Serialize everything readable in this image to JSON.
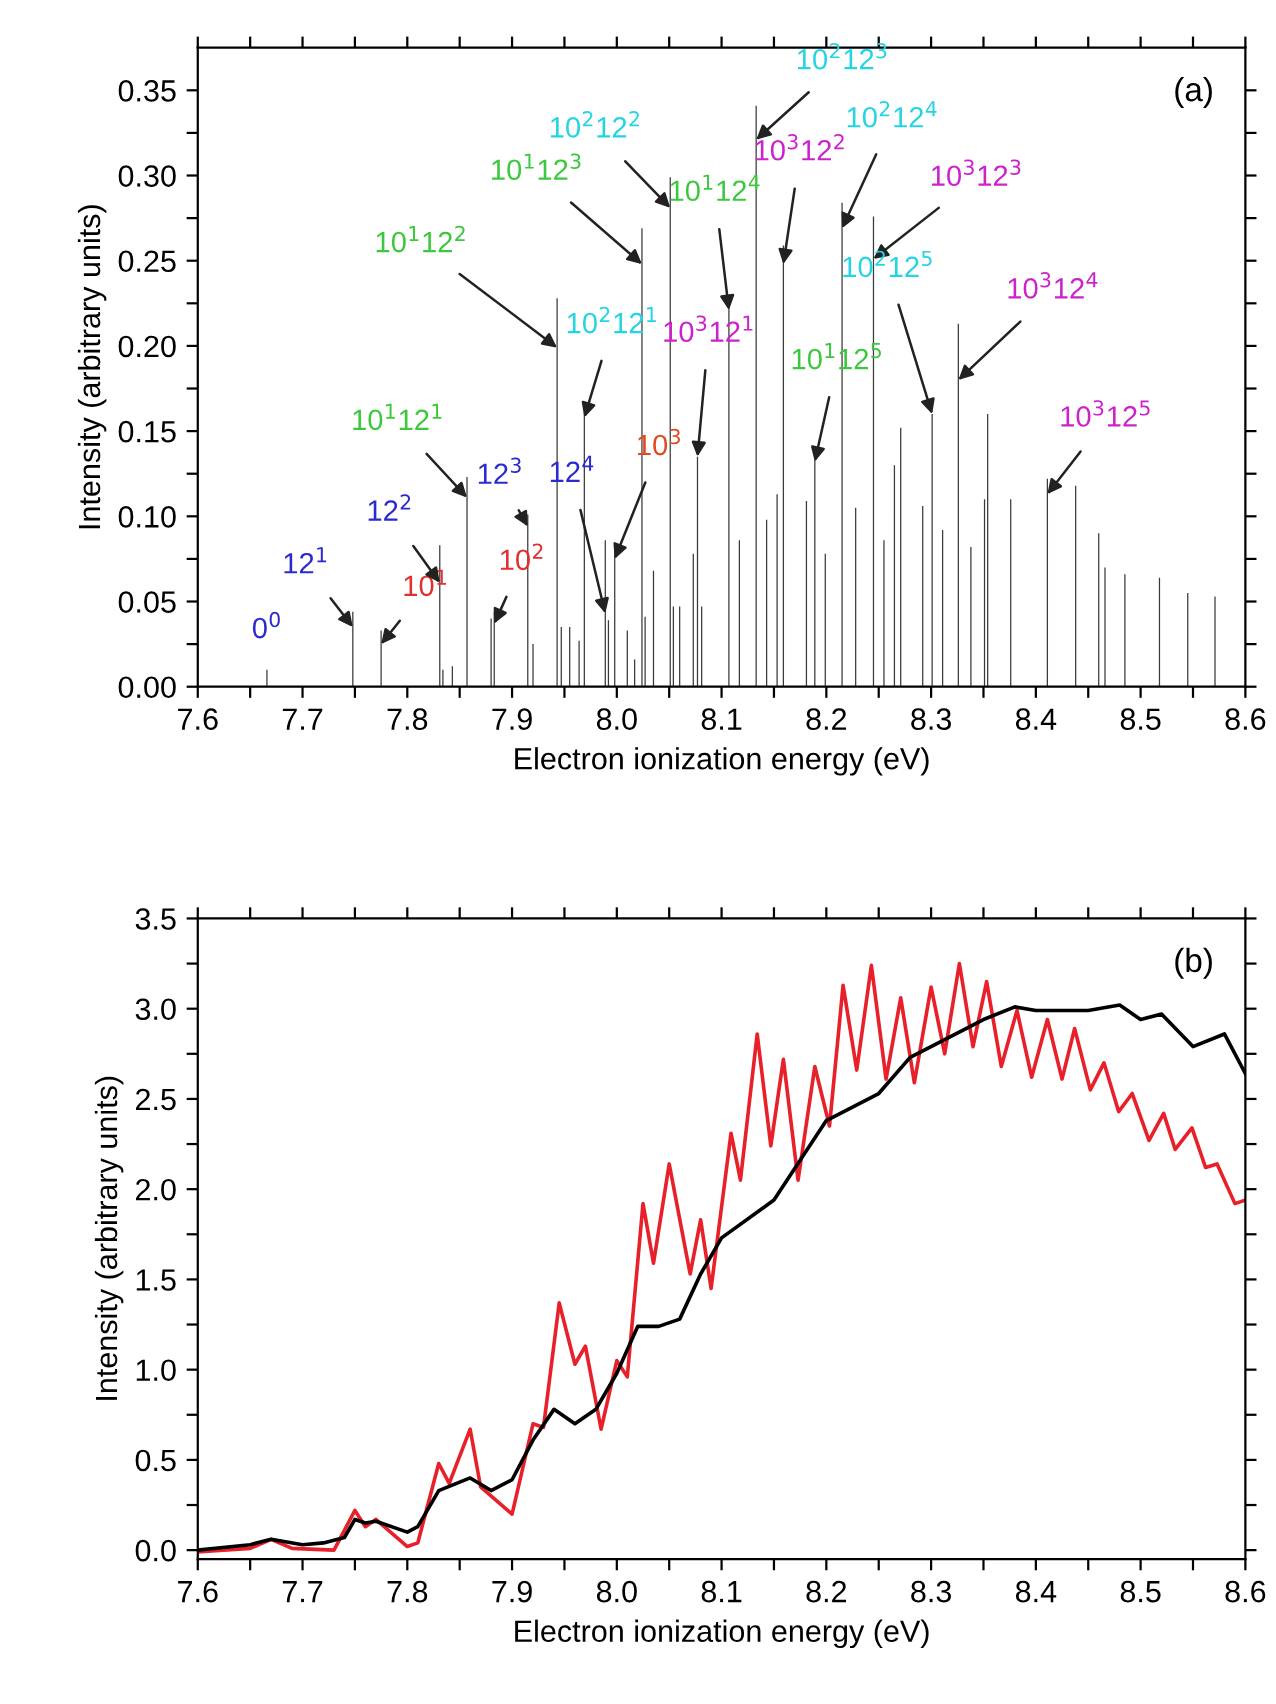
{
  "chart_data": [
    {
      "type": "bar",
      "xlabel": "Electron ionization energy (eV)",
      "ylabel": "Intensity (arbitrary units)",
      "xlim": [
        7.6,
        8.6
      ],
      "ylim": [
        0,
        0.375
      ],
      "xticks": [
        7.6,
        {
          "value": 7.65,
          "label": null
        },
        7.7,
        {
          "value": 7.75,
          "label": null
        },
        7.8,
        {
          "value": 7.85,
          "label": null
        },
        7.9,
        {
          "value": 7.95,
          "label": null
        },
        {
          "value": 8,
          "label": "8.0"
        },
        {
          "value": 8.05,
          "label": null
        },
        8.1,
        {
          "value": 8.15,
          "label": null
        },
        8.2,
        {
          "value": 8.25,
          "label": null
        },
        8.3,
        {
          "value": 8.35,
          "label": null
        },
        8.4,
        {
          "value": 8.45,
          "label": null
        },
        8.5,
        {
          "value": 8.55,
          "label": null
        },
        8.6
      ],
      "yticks": [
        {
          "value": 0,
          "label": "0.00"
        },
        {
          "value": 0.025,
          "label": null
        },
        0.05,
        {
          "value": 0.075,
          "label": null
        },
        {
          "value": 0.1,
          "label": "0.10"
        },
        {
          "value": 0.125,
          "label": null
        },
        0.15,
        {
          "value": 0.175,
          "label": null
        },
        {
          "value": 0.2,
          "label": "0.20"
        },
        {
          "value": 0.225,
          "label": null
        },
        0.25,
        {
          "value": 0.275,
          "label": null
        },
        {
          "value": 0.3,
          "label": "0.30"
        },
        {
          "value": 0.325,
          "label": null
        },
        0.35
      ],
      "grid": false,
      "series": [
        {
          "color": "#3a3a3a",
          "x": [
            7.666,
            7.748,
            7.775,
            7.831,
            7.834,
            7.843,
            7.857,
            7.88,
            7.883,
            7.915,
            7.92,
            7.943,
            7.947,
            7.955,
            7.964,
            7.969,
            7.989,
            7.992,
            7.998,
            8.01,
            8.017,
            8.024,
            8.027,
            8.035,
            8.051,
            8.054,
            8.06,
            8.073,
            8.077,
            8.081,
            8.107,
            8.117,
            8.133,
            8.143,
            8.153,
            8.159,
            8.181,
            8.189,
            8.199,
            8.215,
            8.228,
            8.245,
            8.255,
            8.265,
            8.271,
            8.292,
            8.301,
            8.311,
            8.326,
            8.338,
            8.351,
            8.354,
            8.376,
            8.411,
            8.438,
            8.46,
            8.466,
            8.485,
            8.518,
            8.545,
            8.571
          ],
          "values": [
            0.01,
            0.044,
            0.033,
            0.083,
            0.01,
            0.012,
            0.123,
            0.04,
            0.044,
            0.101,
            0.025,
            0.228,
            0.035,
            0.035,
            0.027,
            0.161,
            0.086,
            0.039,
            0.082,
            0.033,
            0.016,
            0.269,
            0.041,
            0.068,
            0.299,
            0.047,
            0.047,
            0.078,
            0.135,
            0.047,
            0.223,
            0.086,
            0.341,
            0.098,
            0.113,
            0.259,
            0.109,
            0.133,
            0.078,
            0.284,
            0.105,
            0.276,
            0.086,
            0.13,
            0.152,
            0.106,
            0.16,
            0.092,
            0.213,
            0.082,
            0.11,
            0.16,
            0.11,
            0.122,
            0.118,
            0.09,
            0.07,
            0.066,
            0.064,
            0.055,
            0.053
          ]
        }
      ],
      "annotations": [
        {
          "text": "0$^{0}$",
          "x": 7.666,
          "y": 0.01
        },
        {
          "text": "12$^{1}$",
          "x": 7.748,
          "y": 0.035
        },
        {
          "text": "10$^{1}$",
          "x": 7.775,
          "y": 0.025
        },
        {
          "text": "12$^{2}$",
          "x": 7.831,
          "y": 0.061
        },
        {
          "text": "10$^{1}$12$^{1}$",
          "x": 7.857,
          "y": 0.111
        },
        {
          "text": "10$^{2}$",
          "x": 7.883,
          "y": 0.037
        },
        {
          "text": "12$^{3}$",
          "x": 7.915,
          "y": 0.094
        },
        {
          "text": "10$^{1}$12$^{2}$",
          "x": 7.943,
          "y": 0.199
        },
        {
          "text": "10$^{2}$12$^{1}$",
          "x": 7.969,
          "y": 0.158
        },
        {
          "text": "10$^{3}$",
          "x": 7.998,
          "y": 0.075
        },
        {
          "text": "12$^{4}$",
          "x": 7.989,
          "y": 0.043
        },
        {
          "text": "10$^{1}$12$^{3}$",
          "x": 8.024,
          "y": 0.248
        },
        {
          "text": "10$^{2}$12$^{2}$",
          "x": 8.051,
          "y": 0.281
        },
        {
          "text": "10$^{3}$12$^{1}$",
          "x": 8.077,
          "y": 0.135
        },
        {
          "text": "10$^{1}$12$^{4}$",
          "x": 8.107,
          "y": 0.221
        },
        {
          "text": "10$^{2}$12$^{3}$",
          "x": 8.133,
          "y": 0.321
        },
        {
          "text": "10$^{3}$12$^{2}$",
          "x": 8.159,
          "y": 0.248
        },
        {
          "text": "10$^{1}$12$^{5}$",
          "x": 8.189,
          "y": 0.132
        },
        {
          "text": "10$^{2}$12$^{4}$",
          "x": 8.215,
          "y": 0.269
        },
        {
          "text": "10$^{3}$12$^{3}$",
          "x": 8.245,
          "y": 0.251
        },
        {
          "text": "10$^{2}$12$^{5}$",
          "x": 8.301,
          "y": 0.16
        },
        {
          "text": "10$^{3}$12$^{4}$",
          "x": 8.326,
          "y": 0.18
        },
        {
          "text": "10$^{3}$12$^{5}$",
          "x": 8.411,
          "y": 0.113
        },
        "(a)"
      ]
    },
    {
      "type": "line",
      "xlabel": "Electron ionization energy (eV)",
      "ylabel": "Intensity (arbitrary units)",
      "xlim": [
        7.6,
        8.6
      ],
      "ylim": [
        -0.05,
        3.5
      ],
      "xticks": [
        7.6,
        {
          "value": 7.65,
          "label": null
        },
        7.7,
        {
          "value": 7.75,
          "label": null
        },
        7.8,
        {
          "value": 7.85,
          "label": null
        },
        7.9,
        {
          "value": 7.95,
          "label": null
        },
        {
          "value": 8,
          "label": "8.0"
        },
        {
          "value": 8.05,
          "label": null
        },
        8.1,
        {
          "value": 8.15,
          "label": null
        },
        8.2,
        {
          "value": 8.25,
          "label": null
        },
        8.3,
        {
          "value": 8.35,
          "label": null
        },
        8.4,
        {
          "value": 8.45,
          "label": null
        },
        8.5,
        {
          "value": 8.55,
          "label": null
        },
        8.6
      ],
      "yticks": [
        {
          "value": 0,
          "label": "0.0"
        },
        {
          "value": 0.25,
          "label": null
        },
        0.5,
        {
          "value": 0.75,
          "label": null
        },
        {
          "value": 1,
          "label": "1.0"
        },
        {
          "value": 1.25,
          "label": null
        },
        1.5,
        {
          "value": 1.75,
          "label": null
        },
        {
          "value": 2,
          "label": "2.0"
        },
        {
          "value": 2.25,
          "label": null
        },
        2.5,
        {
          "value": 2.75,
          "label": null
        },
        {
          "value": 3,
          "label": "3.0"
        },
        {
          "value": 3.25,
          "label": null
        },
        3.5
      ],
      "grid": false,
      "marker": "none",
      "line_style": "solid",
      "series": [
        {
          "color": "#e8202a",
          "x": [
            7.6,
            7.65,
            7.67,
            7.69,
            7.73,
            7.75,
            7.76,
            7.77,
            7.8,
            7.81,
            7.83,
            7.84,
            7.86,
            7.87,
            7.9,
            7.92,
            7.93,
            7.945,
            7.96,
            7.97,
            7.985,
            8.0,
            8.01,
            8.025,
            8.035,
            8.05,
            8.07,
            8.08,
            8.09,
            8.109,
            8.118,
            8.134,
            8.147,
            8.159,
            8.173,
            8.189,
            8.203,
            8.216,
            8.229,
            8.243,
            8.257,
            8.271,
            8.284,
            8.3,
            8.313,
            8.327,
            8.34,
            8.353,
            8.367,
            8.382,
            8.396,
            8.411,
            8.425,
            8.437,
            8.452,
            8.465,
            8.479,
            8.492,
            8.508,
            8.522,
            8.533,
            8.549,
            8.562,
            8.573,
            8.59,
            8.6
          ],
          "values": [
            -0.01,
            0.01,
            0.06,
            0.01,
            0.0,
            0.22,
            0.13,
            0.17,
            0.02,
            0.04,
            0.48,
            0.37,
            0.67,
            0.35,
            0.2,
            0.7,
            0.68,
            1.37,
            1.03,
            1.13,
            0.67,
            1.05,
            0.96,
            1.92,
            1.59,
            2.14,
            1.53,
            1.83,
            1.45,
            2.31,
            2.05,
            2.86,
            2.24,
            2.72,
            2.05,
            2.68,
            2.35,
            3.13,
            2.66,
            3.24,
            2.61,
            3.06,
            2.59,
            3.12,
            2.75,
            3.25,
            2.79,
            3.15,
            2.68,
            2.99,
            2.62,
            2.94,
            2.61,
            2.89,
            2.55,
            2.7,
            2.43,
            2.53,
            2.27,
            2.42,
            2.22,
            2.34,
            2.12,
            2.14,
            1.92,
            1.94
          ]
        },
        {
          "color": "#000000",
          "x": [
            7.6,
            7.65,
            7.67,
            7.7,
            7.72,
            7.74,
            7.75,
            7.76,
            7.77,
            7.8,
            7.81,
            7.83,
            7.86,
            7.88,
            7.9,
            7.92,
            7.94,
            7.96,
            7.98,
            8.0,
            8.02,
            8.04,
            8.06,
            8.08,
            8.1,
            8.15,
            8.2,
            8.25,
            8.28,
            8.3,
            8.35,
            8.38,
            8.4,
            8.45,
            8.48,
            8.5,
            8.52,
            8.55,
            8.58,
            8.6
          ],
          "values": [
            0.0,
            0.03,
            0.06,
            0.03,
            0.04,
            0.07,
            0.17,
            0.15,
            0.16,
            0.1,
            0.13,
            0.33,
            0.4,
            0.33,
            0.39,
            0.61,
            0.78,
            0.7,
            0.78,
            0.98,
            1.24,
            1.24,
            1.28,
            1.53,
            1.73,
            1.94,
            2.38,
            2.53,
            2.73,
            2.79,
            2.94,
            3.01,
            2.99,
            2.99,
            3.02,
            2.94,
            2.97,
            2.79,
            2.86,
            2.64
          ]
        }
      ],
      "annotations": [
        "(b)"
      ]
    }
  ]
}
